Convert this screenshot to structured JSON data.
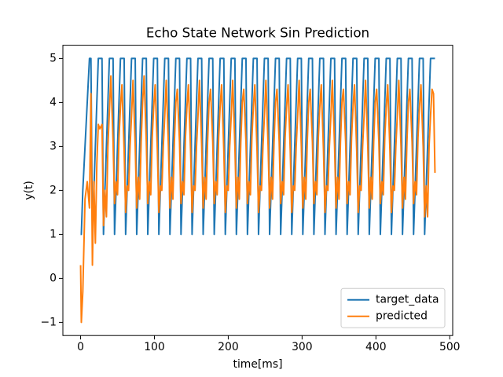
{
  "chart_data": {
    "type": "line",
    "title": "Echo State Network Sin Prediction",
    "x_label": "time[ms]",
    "y_label": "y(t)",
    "xlim": [
      -24,
      504
    ],
    "ylim": [
      -1.3,
      5.3
    ],
    "xticks": [
      0,
      100,
      200,
      300,
      400,
      500
    ],
    "yticks": [
      {
        "value": -1,
        "label": "−1"
      },
      0,
      1,
      2,
      3,
      4,
      5
    ],
    "grid": false,
    "legend": "lower right",
    "x": [
      0,
      1,
      3,
      6,
      9,
      12,
      14,
      16,
      18,
      20,
      22,
      24,
      26,
      29,
      31,
      33,
      35,
      37,
      39,
      41,
      44,
      46,
      48,
      50,
      52,
      54,
      56,
      59,
      61,
      63,
      65,
      67,
      69,
      71,
      74,
      76,
      78,
      80,
      82,
      84,
      86,
      89,
      91,
      93,
      95,
      97,
      99,
      101,
      104,
      106,
      108,
      110,
      112,
      114,
      116,
      119,
      121,
      123,
      125,
      127,
      129,
      131,
      134,
      136,
      138,
      140,
      142,
      144,
      146,
      149,
      151,
      153,
      155,
      157,
      159,
      161,
      164,
      166,
      168,
      170,
      172,
      174,
      176,
      179,
      181,
      183,
      185,
      187,
      189,
      191,
      194,
      196,
      198,
      200,
      202,
      204,
      206,
      209,
      211,
      213,
      215,
      217,
      219,
      221,
      224,
      226,
      228,
      230,
      232,
      234,
      236,
      239,
      241,
      243,
      245,
      247,
      249,
      251,
      254,
      256,
      258,
      260,
      262,
      264,
      266,
      269,
      271,
      273,
      275,
      277,
      279,
      281,
      284,
      286,
      288,
      290,
      292,
      294,
      296,
      299,
      301,
      303,
      305,
      307,
      309,
      311,
      314,
      316,
      318,
      320,
      322,
      324,
      326,
      329,
      331,
      333,
      335,
      337,
      339,
      341,
      344,
      346,
      348,
      350,
      352,
      354,
      356,
      359,
      361,
      363,
      365,
      367,
      369,
      371,
      374,
      376,
      378,
      380,
      382,
      384,
      386,
      389,
      391,
      393,
      395,
      397,
      399,
      401,
      404,
      406,
      408,
      410,
      412,
      414,
      416,
      419,
      421,
      423,
      425,
      427,
      429,
      431,
      434,
      436,
      438,
      440,
      442,
      444,
      446,
      449,
      451,
      453,
      455,
      457,
      459,
      461,
      464,
      466,
      468,
      470,
      472,
      474,
      476,
      478,
      480
    ],
    "series": [
      {
        "name": "target_data",
        "color": "#1f77b4",
        "values": [
          1,
          1,
          2,
          3,
          4,
          5,
          5,
          1,
          2,
          3,
          4,
          5,
          5,
          5,
          1,
          2,
          3,
          4,
          5,
          5,
          5,
          1,
          2,
          3,
          4,
          5,
          5,
          5,
          1,
          2,
          3,
          4,
          5,
          5,
          5,
          1,
          2,
          3,
          4,
          5,
          5,
          5,
          1,
          2,
          3,
          4,
          5,
          5,
          5,
          1,
          2,
          3,
          4,
          5,
          5,
          5,
          1,
          2,
          3,
          4,
          5,
          5,
          5,
          1,
          2,
          3,
          4,
          5,
          5,
          5,
          1,
          2,
          3,
          4,
          5,
          5,
          5,
          1,
          2,
          3,
          4,
          5,
          5,
          5,
          1,
          2,
          3,
          4,
          5,
          5,
          5,
          1,
          2,
          3,
          4,
          5,
          5,
          5,
          1,
          2,
          3,
          4,
          5,
          5,
          5,
          1,
          2,
          3,
          4,
          5,
          5,
          5,
          1,
          2,
          3,
          4,
          5,
          5,
          5,
          1,
          2,
          3,
          4,
          5,
          5,
          5,
          1,
          2,
          3,
          4,
          5,
          5,
          5,
          1,
          2,
          3,
          4,
          5,
          5,
          5,
          1,
          2,
          3,
          4,
          5,
          5,
          5,
          1,
          2,
          3,
          4,
          5,
          5,
          5,
          1,
          2,
          3,
          4,
          5,
          5,
          5,
          1,
          2,
          3,
          4,
          5,
          5,
          5,
          1,
          2,
          3,
          4,
          5,
          5,
          5,
          1,
          2,
          3,
          4,
          5,
          5,
          5,
          1,
          2,
          3,
          4,
          5,
          5,
          5,
          1,
          2,
          3,
          4,
          5,
          5,
          5,
          1,
          2,
          3,
          4,
          5,
          5,
          5,
          1,
          2,
          3,
          4,
          5,
          5,
          5,
          1,
          2,
          3,
          4,
          5,
          5,
          5,
          1,
          2,
          3,
          4,
          5,
          5,
          5,
          5
        ]
      },
      {
        "name": "predicted",
        "color": "#ff7f0e",
        "values": [
          0.3,
          -1,
          -0.3,
          1.8,
          2.2,
          1.6,
          4.2,
          0.3,
          2.2,
          0.8,
          2.6,
          3.5,
          3.4,
          3.5,
          1.2,
          2.0,
          1.4,
          3.0,
          3.8,
          4.6,
          3.1,
          1.7,
          2.2,
          1.9,
          3.2,
          3.9,
          4.4,
          2.9,
          1.5,
          2.1,
          2.0,
          3.0,
          3.7,
          4.5,
          3.0,
          1.6,
          2.3,
          1.8,
          3.1,
          4.0,
          4.6,
          3.1,
          1.7,
          2.2,
          1.9,
          3.2,
          3.9,
          4.4,
          2.9,
          1.5,
          2.1,
          2.0,
          3.0,
          3.7,
          4.5,
          3.0,
          1.6,
          2.3,
          1.8,
          3.1,
          4.0,
          4.3,
          3.1,
          1.7,
          2.2,
          1.9,
          3.2,
          3.9,
          4.4,
          2.9,
          1.5,
          2.1,
          2.0,
          3.0,
          3.7,
          4.5,
          3.0,
          1.6,
          2.3,
          1.8,
          3.1,
          4.0,
          4.3,
          3.1,
          1.7,
          2.2,
          1.9,
          3.2,
          3.9,
          4.4,
          2.9,
          1.5,
          2.1,
          2.0,
          3.0,
          3.7,
          4.5,
          3.0,
          1.6,
          2.3,
          1.8,
          3.1,
          4.0,
          4.3,
          3.1,
          1.7,
          2.2,
          1.9,
          3.2,
          3.9,
          4.4,
          2.9,
          1.5,
          2.1,
          2.0,
          3.0,
          3.7,
          4.5,
          3.0,
          1.6,
          2.3,
          1.8,
          3.1,
          4.0,
          4.3,
          3.1,
          1.7,
          2.2,
          1.9,
          3.2,
          3.9,
          4.4,
          2.9,
          1.5,
          2.1,
          2.0,
          3.0,
          3.7,
          4.5,
          3.0,
          1.6,
          2.3,
          1.8,
          3.1,
          4.0,
          4.3,
          3.1,
          1.7,
          2.2,
          1.9,
          3.2,
          3.9,
          4.4,
          2.9,
          1.5,
          2.1,
          2.0,
          3.0,
          3.7,
          4.5,
          3.0,
          1.6,
          2.3,
          1.8,
          3.1,
          4.0,
          4.3,
          3.1,
          1.7,
          2.2,
          1.9,
          3.2,
          3.9,
          4.4,
          2.9,
          1.5,
          2.1,
          2.0,
          3.0,
          3.7,
          4.5,
          3.0,
          1.6,
          2.3,
          1.8,
          3.1,
          4.0,
          4.3,
          3.1,
          1.7,
          2.2,
          1.9,
          3.2,
          3.9,
          4.4,
          2.9,
          1.5,
          2.1,
          2.0,
          3.0,
          3.7,
          4.5,
          3.0,
          1.6,
          2.3,
          1.8,
          3.1,
          4.0,
          4.3,
          3.1,
          1.7,
          2.2,
          1.9,
          3.2,
          3.9,
          4.4,
          3.0,
          1.4,
          2.1,
          1.4,
          3.0,
          3.7,
          4.3,
          4.2,
          2.4
        ]
      }
    ]
  }
}
